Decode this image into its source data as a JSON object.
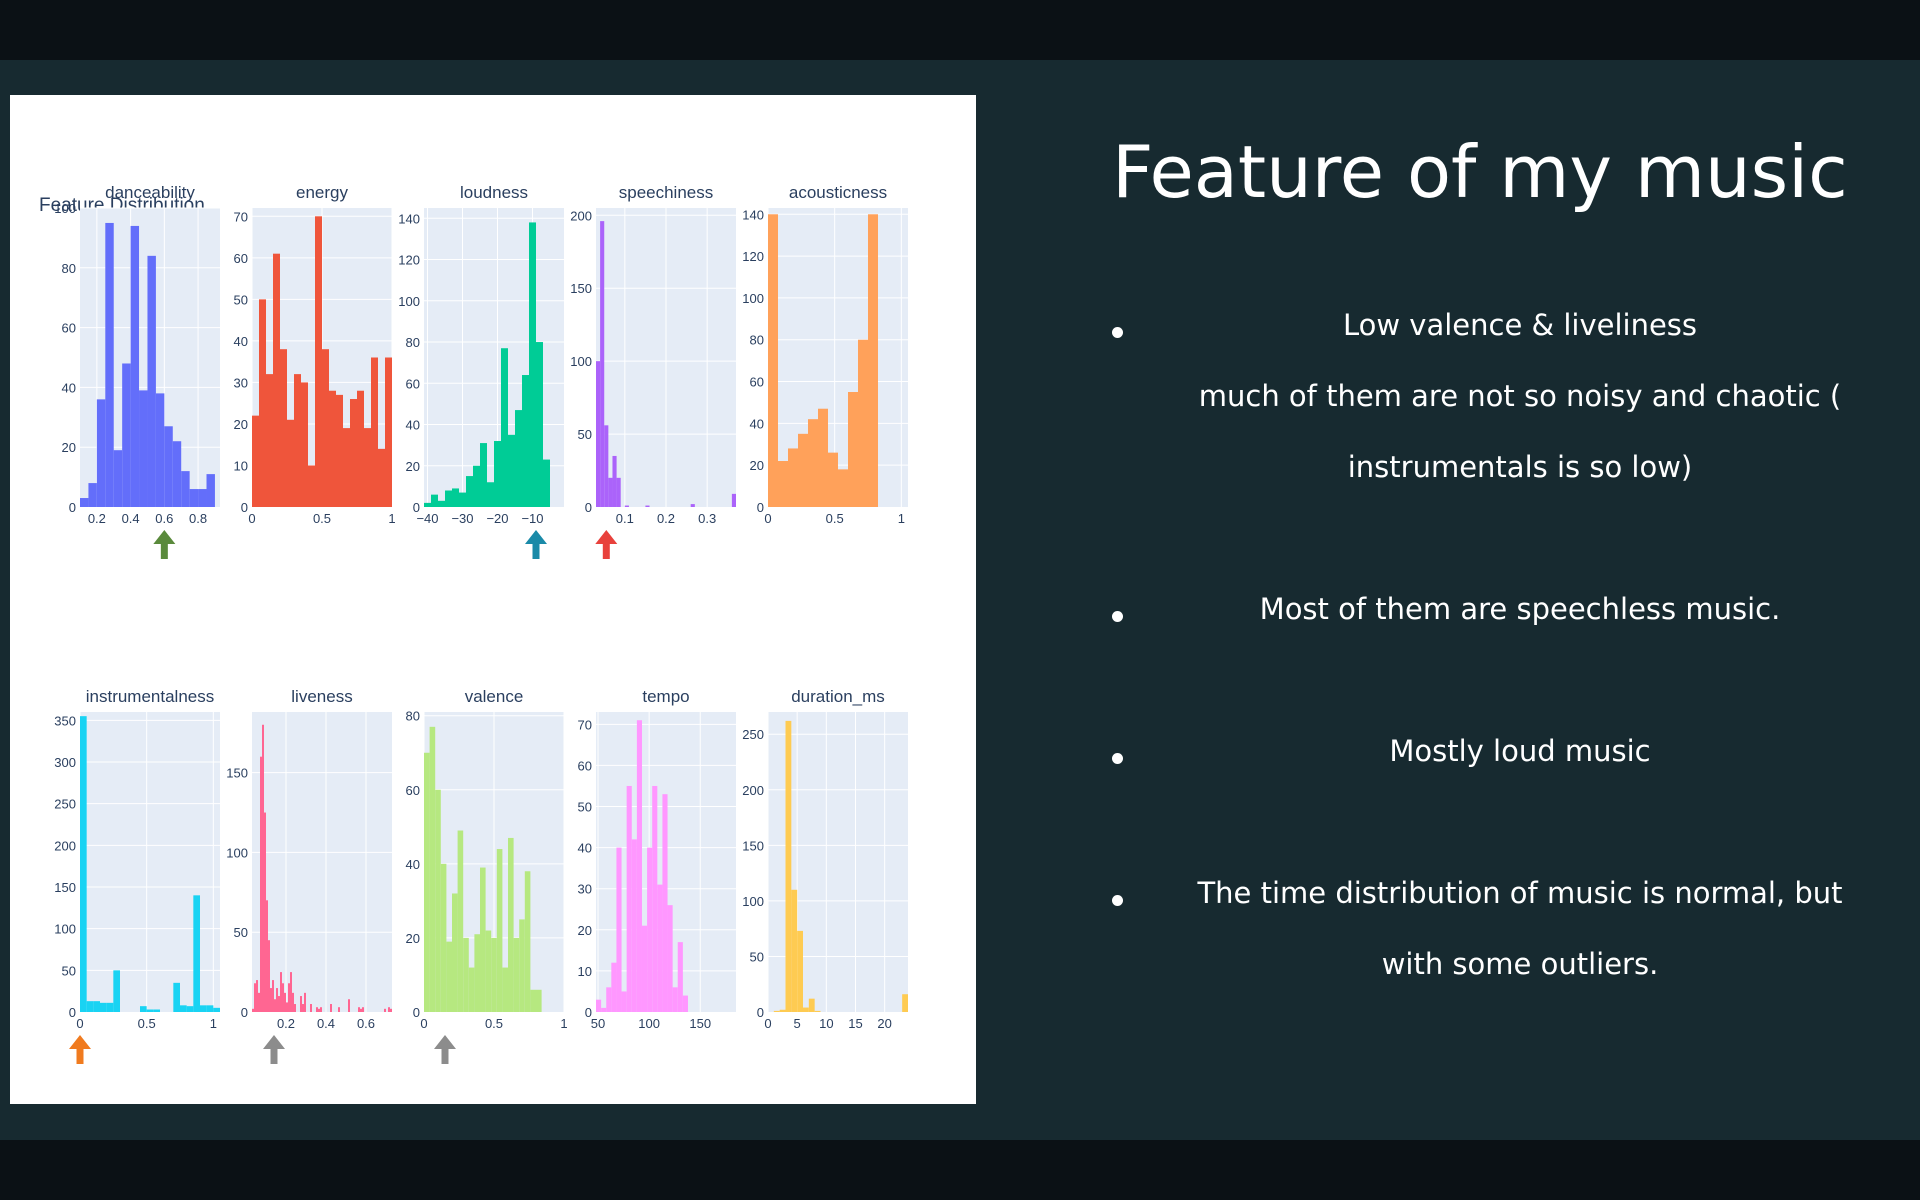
{
  "slide": {
    "title": "Feature of my music",
    "bullets": [
      {
        "lines": [
          "Low valence & liveliness",
          "much of them are not so noisy and chaotic (",
          "instrumentals is so low)"
        ]
      },
      {
        "lines": [
          "Most of them are speechless music."
        ]
      },
      {
        "lines": [
          "Mostly loud music"
        ]
      },
      {
        "lines": [
          "The time distribution of music is normal, but",
          "with some outliers."
        ]
      }
    ]
  },
  "colors": {
    "plot_bg": "#e5ecf6",
    "arrow_green": "#5a8a3c",
    "arrow_teal": "#1a8aa8",
    "arrow_red": "#e8413c",
    "arrow_orange": "#f07b1f",
    "arrow_gray": "#8c8c8c"
  },
  "chart_data": {
    "type": "bar",
    "title": "Feature Distribution",
    "panels": [
      {
        "name": "danceability",
        "color": "#636efa",
        "xlim": [
          0.1,
          0.93
        ],
        "ylim": [
          0,
          100
        ],
        "xticks": [
          {
            "v": 0.2,
            "label": "0.2"
          },
          {
            "v": 0.4,
            "label": "0.4"
          },
          {
            "v": 0.6,
            "label": "0.6"
          },
          {
            "v": 0.8,
            "label": "0.8"
          }
        ],
        "yticks": [
          {
            "v": 0,
            "label": "0"
          },
          {
            "v": 20,
            "label": "20"
          },
          {
            "v": 40,
            "label": "40"
          },
          {
            "v": 60,
            "label": "60"
          },
          {
            "v": 80,
            "label": "80"
          },
          {
            "v": 100,
            "label": "100"
          }
        ],
        "bin_start": 0.1,
        "bin_width": 0.05,
        "counts": [
          3,
          8,
          36,
          95,
          19,
          48,
          94,
          39,
          84,
          38,
          27,
          22,
          12,
          6,
          6,
          11
        ],
        "arrow": {
          "x": 0.6,
          "color": "#5a8a3c"
        }
      },
      {
        "name": "energy",
        "color": "#ef553b",
        "xlim": [
          0,
          1
        ],
        "ylim": [
          0,
          72
        ],
        "xticks": [
          {
            "v": 0,
            "label": "0"
          },
          {
            "v": 0.5,
            "label": "0.5"
          },
          {
            "v": 1,
            "label": "1"
          }
        ],
        "yticks": [
          {
            "v": 0,
            "label": "0"
          },
          {
            "v": 10,
            "label": "10"
          },
          {
            "v": 20,
            "label": "20"
          },
          {
            "v": 30,
            "label": "30"
          },
          {
            "v": 40,
            "label": "40"
          },
          {
            "v": 50,
            "label": "50"
          },
          {
            "v": 60,
            "label": "60"
          },
          {
            "v": 70,
            "label": "70"
          }
        ],
        "bin_start": 0,
        "bin_width": 0.05,
        "counts": [
          22,
          50,
          32,
          61,
          38,
          21,
          32,
          30,
          10,
          70,
          38,
          28,
          27,
          19,
          26,
          28,
          19,
          36,
          14,
          36,
          6
        ],
        "arrow": null
      },
      {
        "name": "loudness",
        "color": "#00cc96",
        "xlim": [
          -41,
          -1
        ],
        "ylim": [
          0,
          145
        ],
        "xticks": [
          {
            "v": -40,
            "label": "−40"
          },
          {
            "v": -30,
            "label": "−30"
          },
          {
            "v": -20,
            "label": "−20"
          },
          {
            "v": -10,
            "label": "−10"
          }
        ],
        "yticks": [
          {
            "v": 0,
            "label": "0"
          },
          {
            "v": 20,
            "label": "20"
          },
          {
            "v": 40,
            "label": "40"
          },
          {
            "v": 60,
            "label": "60"
          },
          {
            "v": 80,
            "label": "80"
          },
          {
            "v": 100,
            "label": "100"
          },
          {
            "v": 120,
            "label": "120"
          },
          {
            "v": 140,
            "label": "140"
          }
        ],
        "bin_start": -41,
        "bin_width": 2,
        "counts": [
          2,
          6,
          3,
          8,
          9,
          7,
          15,
          20,
          31,
          12,
          32,
          77,
          35,
          47,
          64,
          138,
          80,
          23
        ],
        "arrow": {
          "x": -9,
          "color": "#1a8aa8"
        }
      },
      {
        "name": "speechiness",
        "color": "#ab63fa",
        "xlim": [
          0.03,
          0.37
        ],
        "ylim": [
          0,
          205
        ],
        "xticks": [
          {
            "v": 0.1,
            "label": "0.1"
          },
          {
            "v": 0.2,
            "label": "0.2"
          },
          {
            "v": 0.3,
            "label": "0.3"
          }
        ],
        "yticks": [
          {
            "v": 0,
            "label": "0"
          },
          {
            "v": 50,
            "label": "50"
          },
          {
            "v": 100,
            "label": "100"
          },
          {
            "v": 150,
            "label": "150"
          },
          {
            "v": 200,
            "label": "200"
          }
        ],
        "bin_start": 0.03,
        "bin_width": 0.01,
        "counts": [
          100,
          196,
          56,
          20,
          35,
          20,
          0,
          1,
          0,
          0,
          0,
          0,
          1,
          0,
          0,
          0,
          0,
          0,
          0,
          0,
          0,
          0,
          0,
          2,
          0,
          0,
          0,
          0,
          0,
          0,
          0,
          0,
          0,
          9
        ],
        "arrow": {
          "x": 0.055,
          "color": "#e8413c"
        }
      },
      {
        "name": "acousticness",
        "color": "#ffa15a",
        "xlim": [
          0,
          1.05
        ],
        "ylim": [
          0,
          143
        ],
        "xticks": [
          {
            "v": 0,
            "label": "0"
          },
          {
            "v": 0.5,
            "label": "0.5"
          },
          {
            "v": 1,
            "label": "1"
          }
        ],
        "yticks": [
          {
            "v": 0,
            "label": "0"
          },
          {
            "v": 20,
            "label": "20"
          },
          {
            "v": 40,
            "label": "40"
          },
          {
            "v": 60,
            "label": "60"
          },
          {
            "v": 80,
            "label": "80"
          },
          {
            "v": 100,
            "label": "100"
          },
          {
            "v": 120,
            "label": "120"
          },
          {
            "v": 140,
            "label": "140"
          }
        ],
        "bin_start": 0,
        "bin_width": 0.075,
        "counts": [
          140,
          22,
          28,
          35,
          42,
          47,
          26,
          18,
          55,
          80,
          140
        ],
        "arrow": null
      },
      {
        "name": "instrumentalness",
        "color": "#19d3f3",
        "xlim": [
          0,
          1.05
        ],
        "ylim": [
          0,
          360
        ],
        "xticks": [
          {
            "v": 0,
            "label": "0"
          },
          {
            "v": 0.5,
            "label": "0.5"
          },
          {
            "v": 1,
            "label": "1"
          }
        ],
        "yticks": [
          {
            "v": 0,
            "label": "0"
          },
          {
            "v": 50,
            "label": "50"
          },
          {
            "v": 100,
            "label": "100"
          },
          {
            "v": 150,
            "label": "150"
          },
          {
            "v": 200,
            "label": "200"
          },
          {
            "v": 250,
            "label": "250"
          },
          {
            "v": 300,
            "label": "300"
          },
          {
            "v": 350,
            "label": "350"
          }
        ],
        "bin_start": 0,
        "bin_width": 0.05,
        "counts": [
          355,
          13,
          13,
          11,
          11,
          50,
          0,
          0,
          0,
          7,
          3,
          3,
          0,
          0,
          35,
          8,
          7,
          140,
          8,
          8,
          5
        ],
        "arrow": {
          "x": 0,
          "color": "#f07b1f"
        }
      },
      {
        "name": "liveness",
        "color": "#ff6692",
        "xlim": [
          0.03,
          0.73
        ],
        "ylim": [
          0,
          188
        ],
        "xticks": [
          {
            "v": 0.2,
            "label": "0.2"
          },
          {
            "v": 0.4,
            "label": "0.4"
          },
          {
            "v": 0.6,
            "label": "0.6"
          }
        ],
        "yticks": [
          {
            "v": 0,
            "label": "0"
          },
          {
            "v": 50,
            "label": "50"
          },
          {
            "v": 100,
            "label": "100"
          },
          {
            "v": 150,
            "label": "150"
          }
        ],
        "bin_start": 0.03,
        "bin_width": 0.01,
        "counts": [
          2,
          18,
          20,
          12,
          160,
          180,
          125,
          70,
          45,
          15,
          20,
          8,
          15,
          10,
          25,
          18,
          12,
          6,
          18,
          25,
          12,
          5,
          0,
          0,
          10,
          5,
          12,
          0,
          0,
          5,
          0,
          0,
          3,
          2,
          3,
          0,
          0,
          0,
          0,
          5,
          0,
          0,
          0,
          3,
          0,
          0,
          0,
          0,
          8,
          0,
          0,
          0,
          0,
          3,
          2,
          3,
          0,
          0,
          0,
          0,
          0,
          0,
          0,
          0,
          0,
          0,
          2,
          0,
          3,
          2
        ],
        "arrow": {
          "x": 0.14,
          "color": "#8c8c8c"
        }
      },
      {
        "name": "valence",
        "color": "#b6e880",
        "xlim": [
          0,
          1
        ],
        "ylim": [
          0,
          81
        ],
        "xticks": [
          {
            "v": 0,
            "label": "0"
          },
          {
            "v": 0.5,
            "label": "0.5"
          },
          {
            "v": 1,
            "label": "1"
          }
        ],
        "yticks": [
          {
            "v": 0,
            "label": "0"
          },
          {
            "v": 20,
            "label": "20"
          },
          {
            "v": 40,
            "label": "40"
          },
          {
            "v": 60,
            "label": "60"
          },
          {
            "v": 80,
            "label": "80"
          }
        ],
        "bin_start": 0,
        "bin_width": 0.04,
        "counts": [
          70,
          77,
          60,
          40,
          19,
          32,
          49,
          20,
          12,
          21,
          39,
          22,
          20,
          44,
          12,
          47,
          20,
          25,
          38,
          6,
          6
        ],
        "arrow": {
          "x": 0.15,
          "color": "#8c8c8c"
        }
      },
      {
        "name": "tempo",
        "color": "#ff97ff",
        "xlim": [
          48,
          185
        ],
        "ylim": [
          0,
          73
        ],
        "xticks": [
          {
            "v": 50,
            "label": "50"
          },
          {
            "v": 100,
            "label": "100"
          },
          {
            "v": 150,
            "label": "150"
          }
        ],
        "yticks": [
          {
            "v": 0,
            "label": "0"
          },
          {
            "v": 10,
            "label": "10"
          },
          {
            "v": 20,
            "label": "20"
          },
          {
            "v": 30,
            "label": "30"
          },
          {
            "v": 40,
            "label": "40"
          },
          {
            "v": 50,
            "label": "50"
          },
          {
            "v": 60,
            "label": "60"
          },
          {
            "v": 70,
            "label": "70"
          }
        ],
        "bin_start": 48,
        "bin_width": 5,
        "counts": [
          3,
          1,
          6,
          12,
          40,
          5,
          55,
          42,
          71,
          21,
          40,
          55,
          31,
          53,
          26,
          6,
          17,
          4
        ],
        "arrow": null
      },
      {
        "name": "duration_ms",
        "color": "#fecb52",
        "xlim": [
          0,
          24
        ],
        "ylim": [
          0,
          270
        ],
        "xticks": [
          {
            "v": 0,
            "label": "0"
          },
          {
            "v": 5,
            "label": "5"
          },
          {
            "v": 10,
            "label": "10"
          },
          {
            "v": 15,
            "label": "15"
          },
          {
            "v": 20,
            "label": "20"
          }
        ],
        "yticks": [
          {
            "v": 0,
            "label": "0"
          },
          {
            "v": 50,
            "label": "50"
          },
          {
            "v": 100,
            "label": "100"
          },
          {
            "v": 150,
            "label": "150"
          },
          {
            "v": 200,
            "label": "200"
          },
          {
            "v": 250,
            "label": "250"
          }
        ],
        "bin_start": 0,
        "bin_width": 1,
        "counts": [
          0,
          1,
          2,
          262,
          110,
          73,
          4,
          12,
          1,
          0,
          0,
          0,
          0,
          0,
          0,
          0,
          0,
          0,
          0,
          0,
          0,
          0,
          0,
          16
        ],
        "arrow": null
      }
    ]
  }
}
